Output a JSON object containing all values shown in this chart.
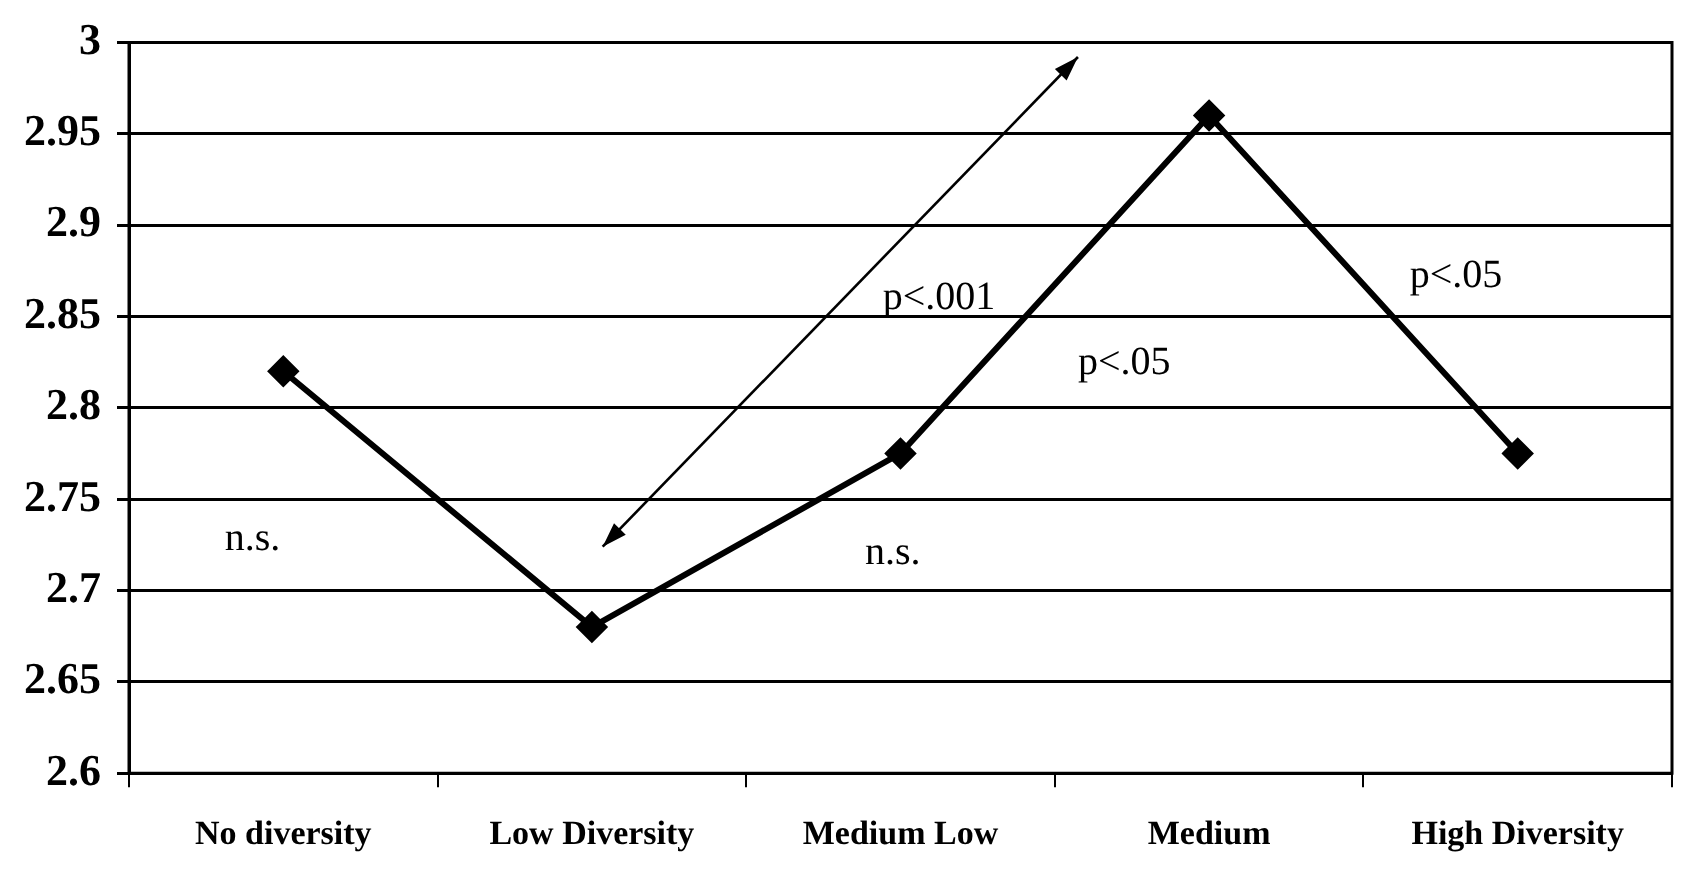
{
  "chart_data": {
    "type": "line",
    "categories": [
      "No diversity",
      "Low Diversity",
      "Medium Low",
      "Medium",
      "High Diversity"
    ],
    "series": [
      {
        "color": "#000000",
        "values": [
          2.82,
          2.68,
          2.775,
          2.96,
          2.775
        ]
      }
    ],
    "ylim": [
      2.6,
      3
    ],
    "yticks": [
      2.6,
      2.65,
      2.7,
      2.75,
      2.8,
      2.85,
      2.9,
      2.95,
      3
    ],
    "grid": "y",
    "legend": false,
    "marker": "diamond",
    "line_style": "solid",
    "annotations": [
      "n.s.",
      "p<.001",
      "n.s.",
      "p<.05",
      "p<.05"
    ]
  }
}
